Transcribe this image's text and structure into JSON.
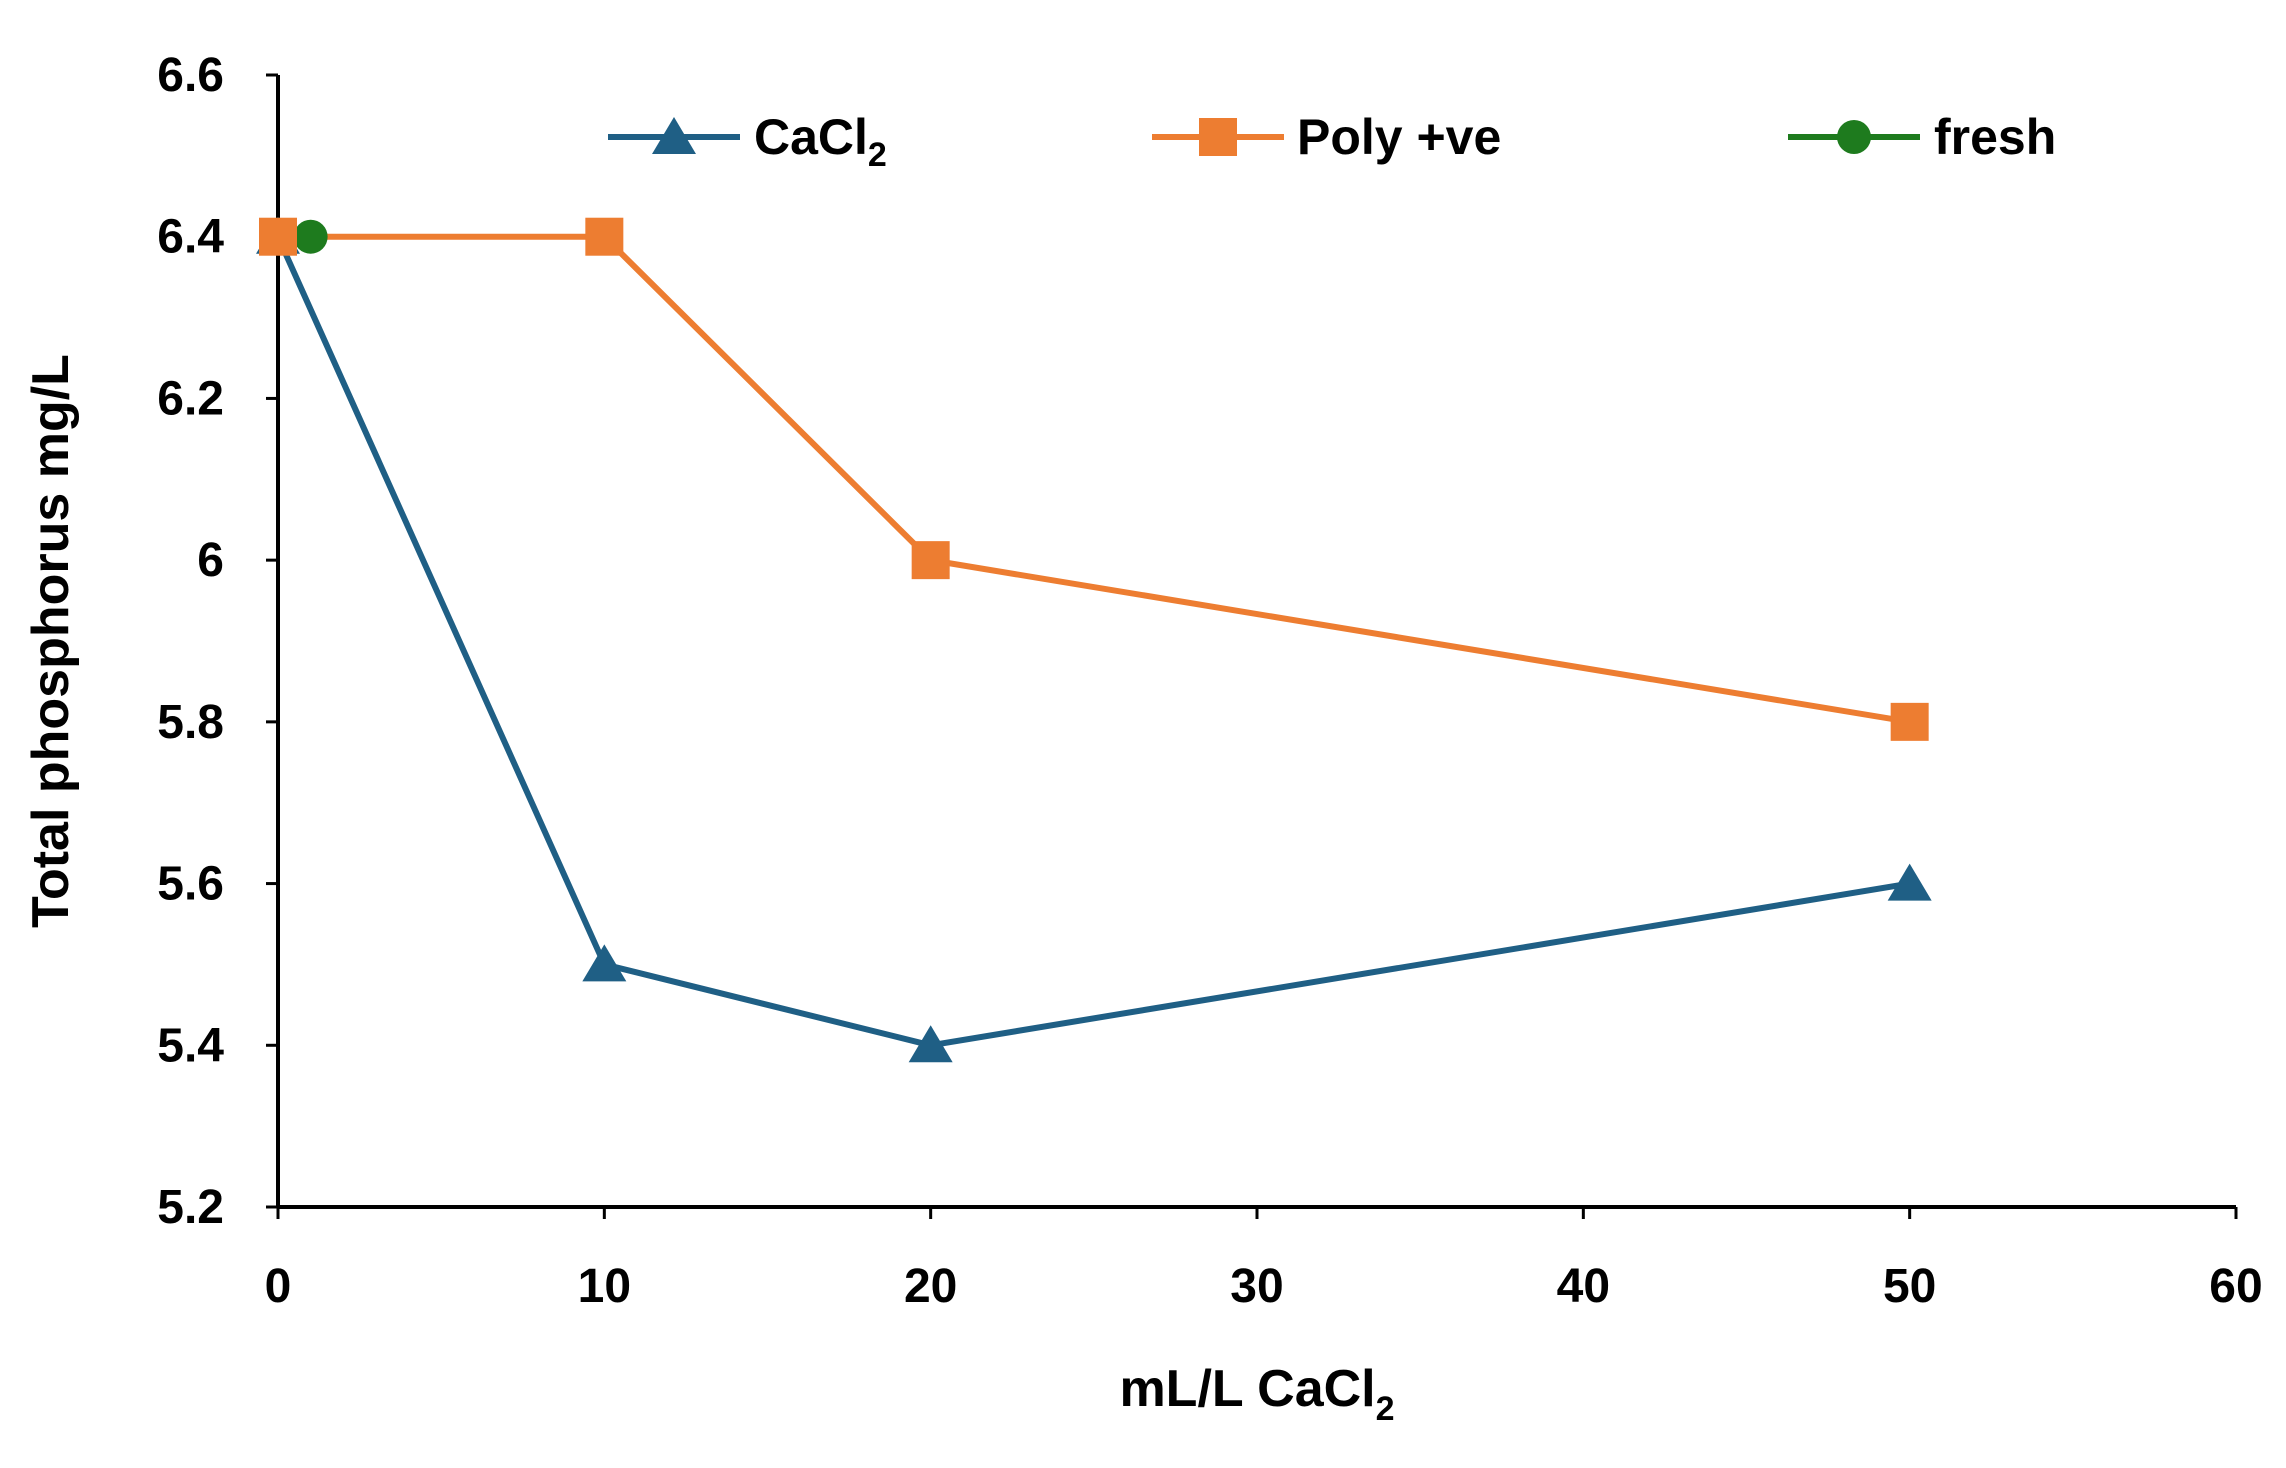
{
  "chart_data": {
    "type": "line",
    "title": "",
    "xlabel": "mL/L CaCl",
    "xlabel_subscript": "2",
    "ylabel": "Total phosphorus mg/L",
    "xlim": [
      0,
      60
    ],
    "ylim": [
      5.2,
      6.6
    ],
    "x_ticks": [
      0,
      10,
      20,
      30,
      40,
      50,
      60
    ],
    "x_tick_labels": [
      "0",
      "10",
      "20",
      "30",
      "40",
      "50",
      "60"
    ],
    "y_ticks": [
      5.2,
      5.4,
      5.6,
      5.8,
      6,
      6.2,
      6.4,
      6.6
    ],
    "y_tick_labels": [
      "5.2",
      "5.4",
      "5.6",
      "5.8",
      "6",
      "6.2",
      "6.4",
      "6.6"
    ],
    "grid": false,
    "legend_position": "top",
    "series": [
      {
        "name": "CaCl",
        "name_subscript": "2",
        "marker": "triangle",
        "color": "#1f5f85",
        "x": [
          0,
          10,
          20,
          50
        ],
        "y": [
          6.4,
          5.5,
          5.4,
          5.6
        ]
      },
      {
        "name": "Poly +ve",
        "name_subscript": "",
        "marker": "square",
        "color": "#ed7d31",
        "x": [
          0,
          10,
          20,
          50
        ],
        "y": [
          6.4,
          6.4,
          6.0,
          5.8
        ]
      },
      {
        "name": "fresh",
        "name_subscript": "",
        "marker": "circle",
        "color": "#1e7b1e",
        "x": [
          1
        ],
        "y": [
          6.4
        ]
      }
    ]
  }
}
